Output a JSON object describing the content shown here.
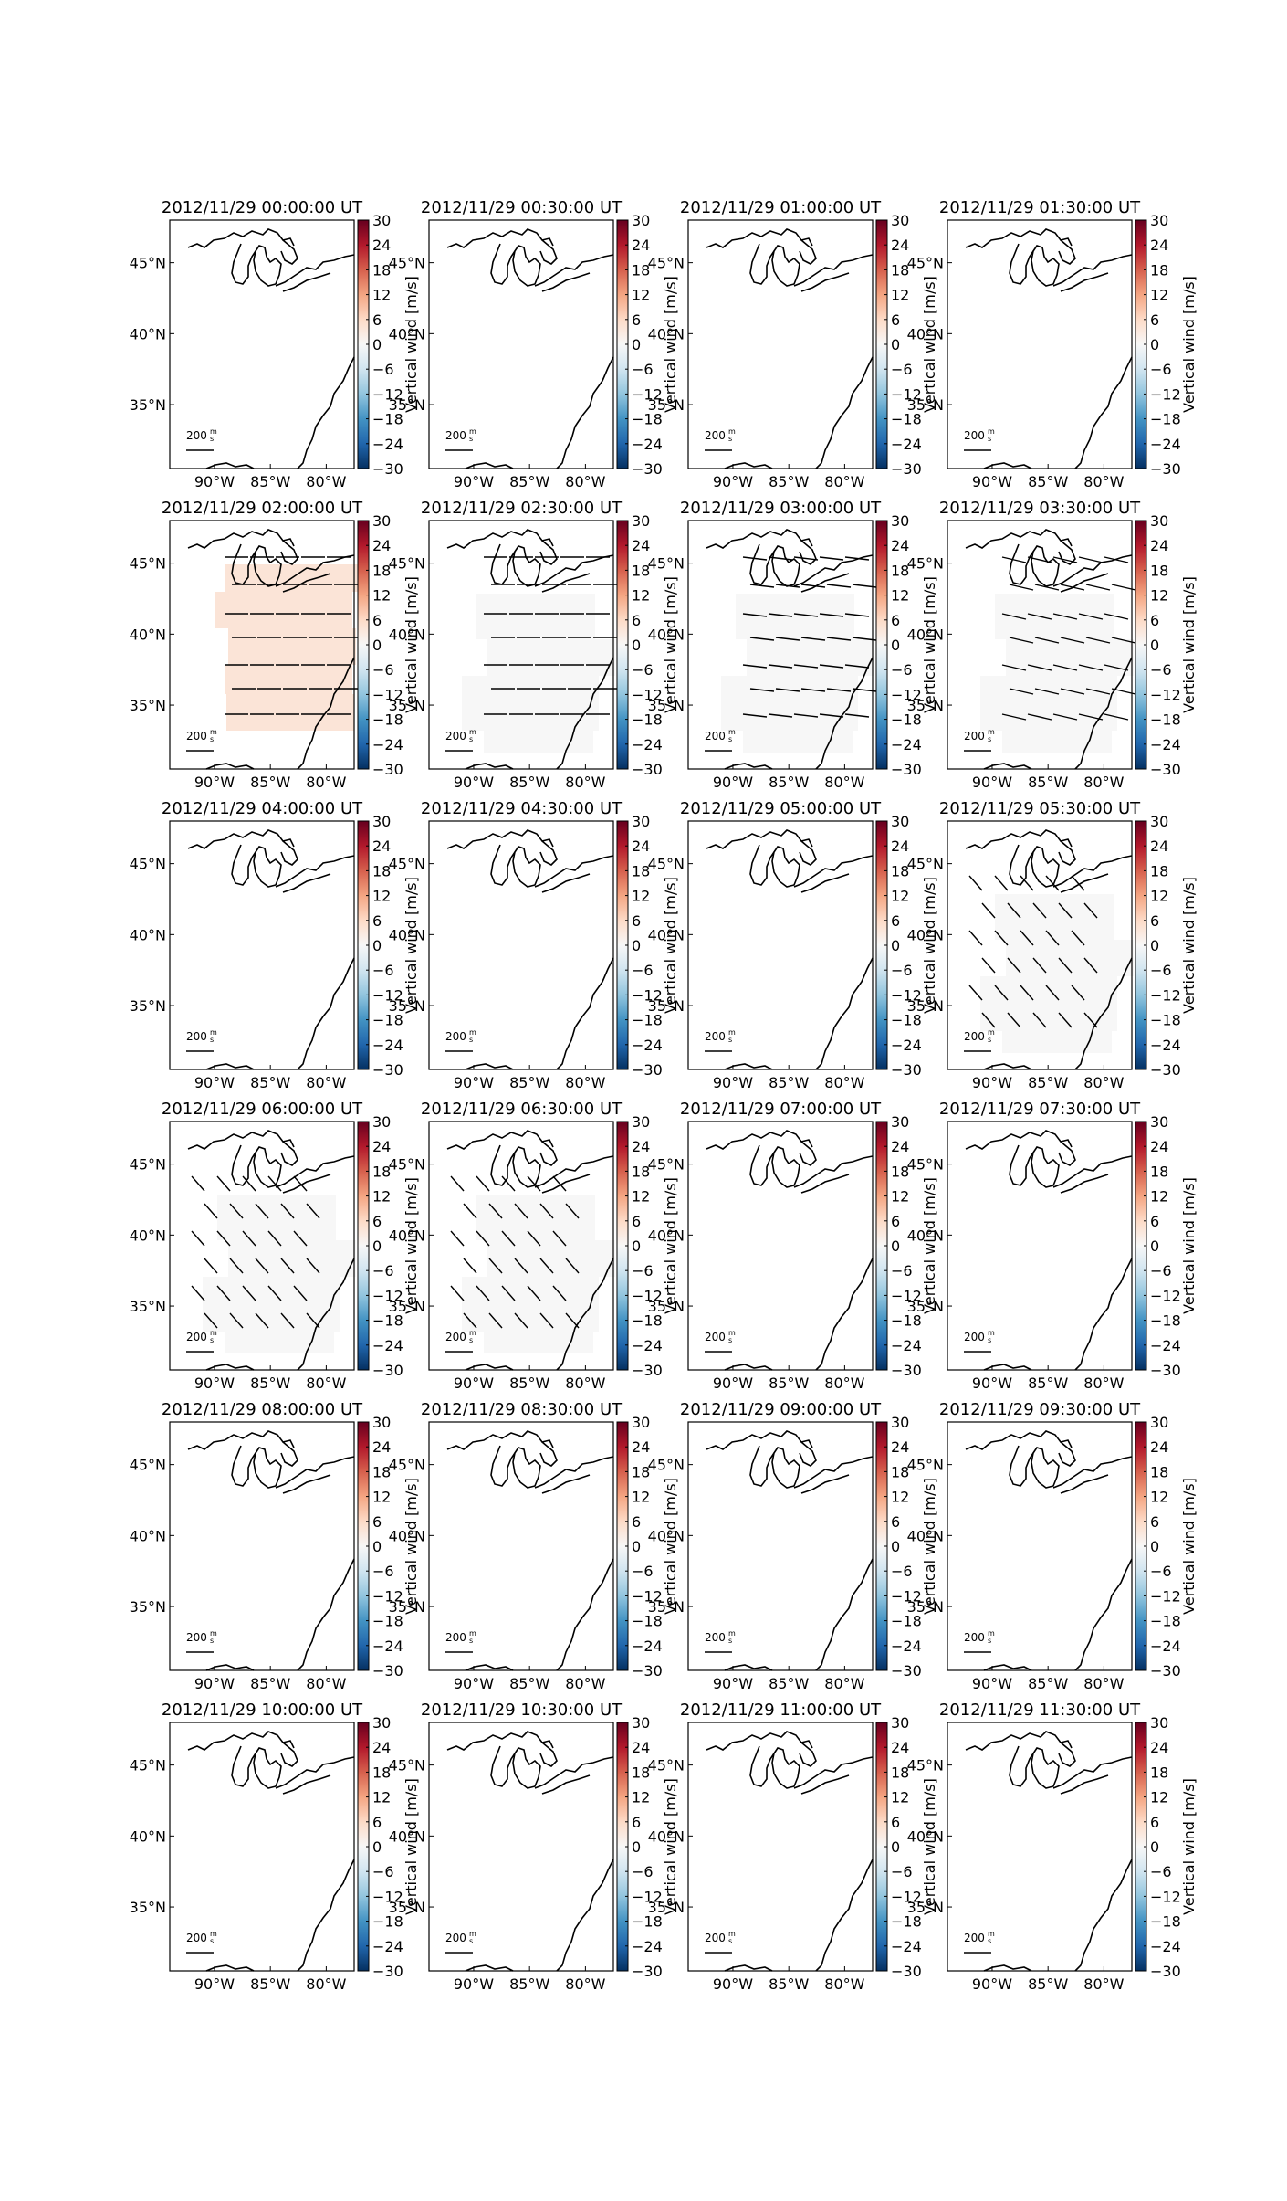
{
  "figure": {
    "colorbar_label": "Vertical wind [m/s]",
    "colorbar_ticks": [
      "30",
      "24",
      "18",
      "12",
      "6",
      "0",
      "−6",
      "−12",
      "−18",
      "−24",
      "−30"
    ],
    "lon_labels": [
      "90°W",
      "85°W",
      "80°W"
    ],
    "lat_labels": [
      "45°N",
      "40°N",
      "35°N"
    ],
    "scale_label": "200",
    "scale_unit_top": "m",
    "scale_unit_bottom": "s",
    "colormap": {
      "low": "#053061",
      "mid": "#f7f7f7",
      "high": "#67001f",
      "name": "RdBu_r"
    }
  },
  "chart_data": {
    "type": "heatmap",
    "description_quantity": "Vertical wind",
    "units": "m/s",
    "color_range": [
      -30,
      30
    ],
    "x_axis": {
      "ticks": [
        -90,
        -85,
        -80
      ],
      "tick_labels": [
        "90°W",
        "85°W",
        "80°W"
      ]
    },
    "y_axis": {
      "ticks": [
        45,
        40,
        35
      ],
      "tick_labels": [
        "45°N",
        "40°N",
        "35°N"
      ]
    },
    "reference_vector": {
      "value": 200,
      "units": "m/s"
    },
    "panels": [
      {
        "title": "2012/11/29 00:00:00 UT",
        "field": "none",
        "vectors": "none"
      },
      {
        "title": "2012/11/29 00:30:00 UT",
        "field": "none",
        "vectors": "none"
      },
      {
        "title": "2012/11/29 01:00:00 UT",
        "field": "none",
        "vectors": "none"
      },
      {
        "title": "2012/11/29 01:30:00 UT",
        "field": "none",
        "vectors": "none"
      },
      {
        "title": "2012/11/29 02:00:00 UT",
        "field": "positive",
        "field_value": 4,
        "vectors": "east"
      },
      {
        "title": "2012/11/29 02:30:00 UT",
        "field": "near-zero",
        "field_value": 0,
        "vectors": "east"
      },
      {
        "title": "2012/11/29 03:00:00 UT",
        "field": "near-zero",
        "field_value": 0,
        "vectors": "east-slight-south"
      },
      {
        "title": "2012/11/29 03:30:00 UT",
        "field": "near-zero",
        "field_value": 0,
        "vectors": "east-southeast"
      },
      {
        "title": "2012/11/29 04:00:00 UT",
        "field": "none",
        "vectors": "none"
      },
      {
        "title": "2012/11/29 04:30:00 UT",
        "field": "none",
        "vectors": "none"
      },
      {
        "title": "2012/11/29 05:00:00 UT",
        "field": "none",
        "vectors": "none"
      },
      {
        "title": "2012/11/29 05:30:00 UT",
        "field": "near-zero",
        "field_value": 0,
        "vectors": "southeast"
      },
      {
        "title": "2012/11/29 06:00:00 UT",
        "field": "near-zero",
        "field_value": 0,
        "vectors": "southeast"
      },
      {
        "title": "2012/11/29 06:30:00 UT",
        "field": "near-zero",
        "field_value": 0,
        "vectors": "southeast"
      },
      {
        "title": "2012/11/29 07:00:00 UT",
        "field": "none",
        "vectors": "none"
      },
      {
        "title": "2012/11/29 07:30:00 UT",
        "field": "none",
        "vectors": "none"
      },
      {
        "title": "2012/11/29 08:00:00 UT",
        "field": "none",
        "vectors": "none"
      },
      {
        "title": "2012/11/29 08:30:00 UT",
        "field": "none",
        "vectors": "none"
      },
      {
        "title": "2012/11/29 09:00:00 UT",
        "field": "none",
        "vectors": "none"
      },
      {
        "title": "2012/11/29 09:30:00 UT",
        "field": "none",
        "vectors": "none"
      },
      {
        "title": "2012/11/29 10:00:00 UT",
        "field": "none",
        "vectors": "none"
      },
      {
        "title": "2012/11/29 10:30:00 UT",
        "field": "none",
        "vectors": "none"
      },
      {
        "title": "2012/11/29 11:00:00 UT",
        "field": "none",
        "vectors": "none"
      },
      {
        "title": "2012/11/29 11:30:00 UT",
        "field": "none",
        "vectors": "none"
      }
    ]
  }
}
